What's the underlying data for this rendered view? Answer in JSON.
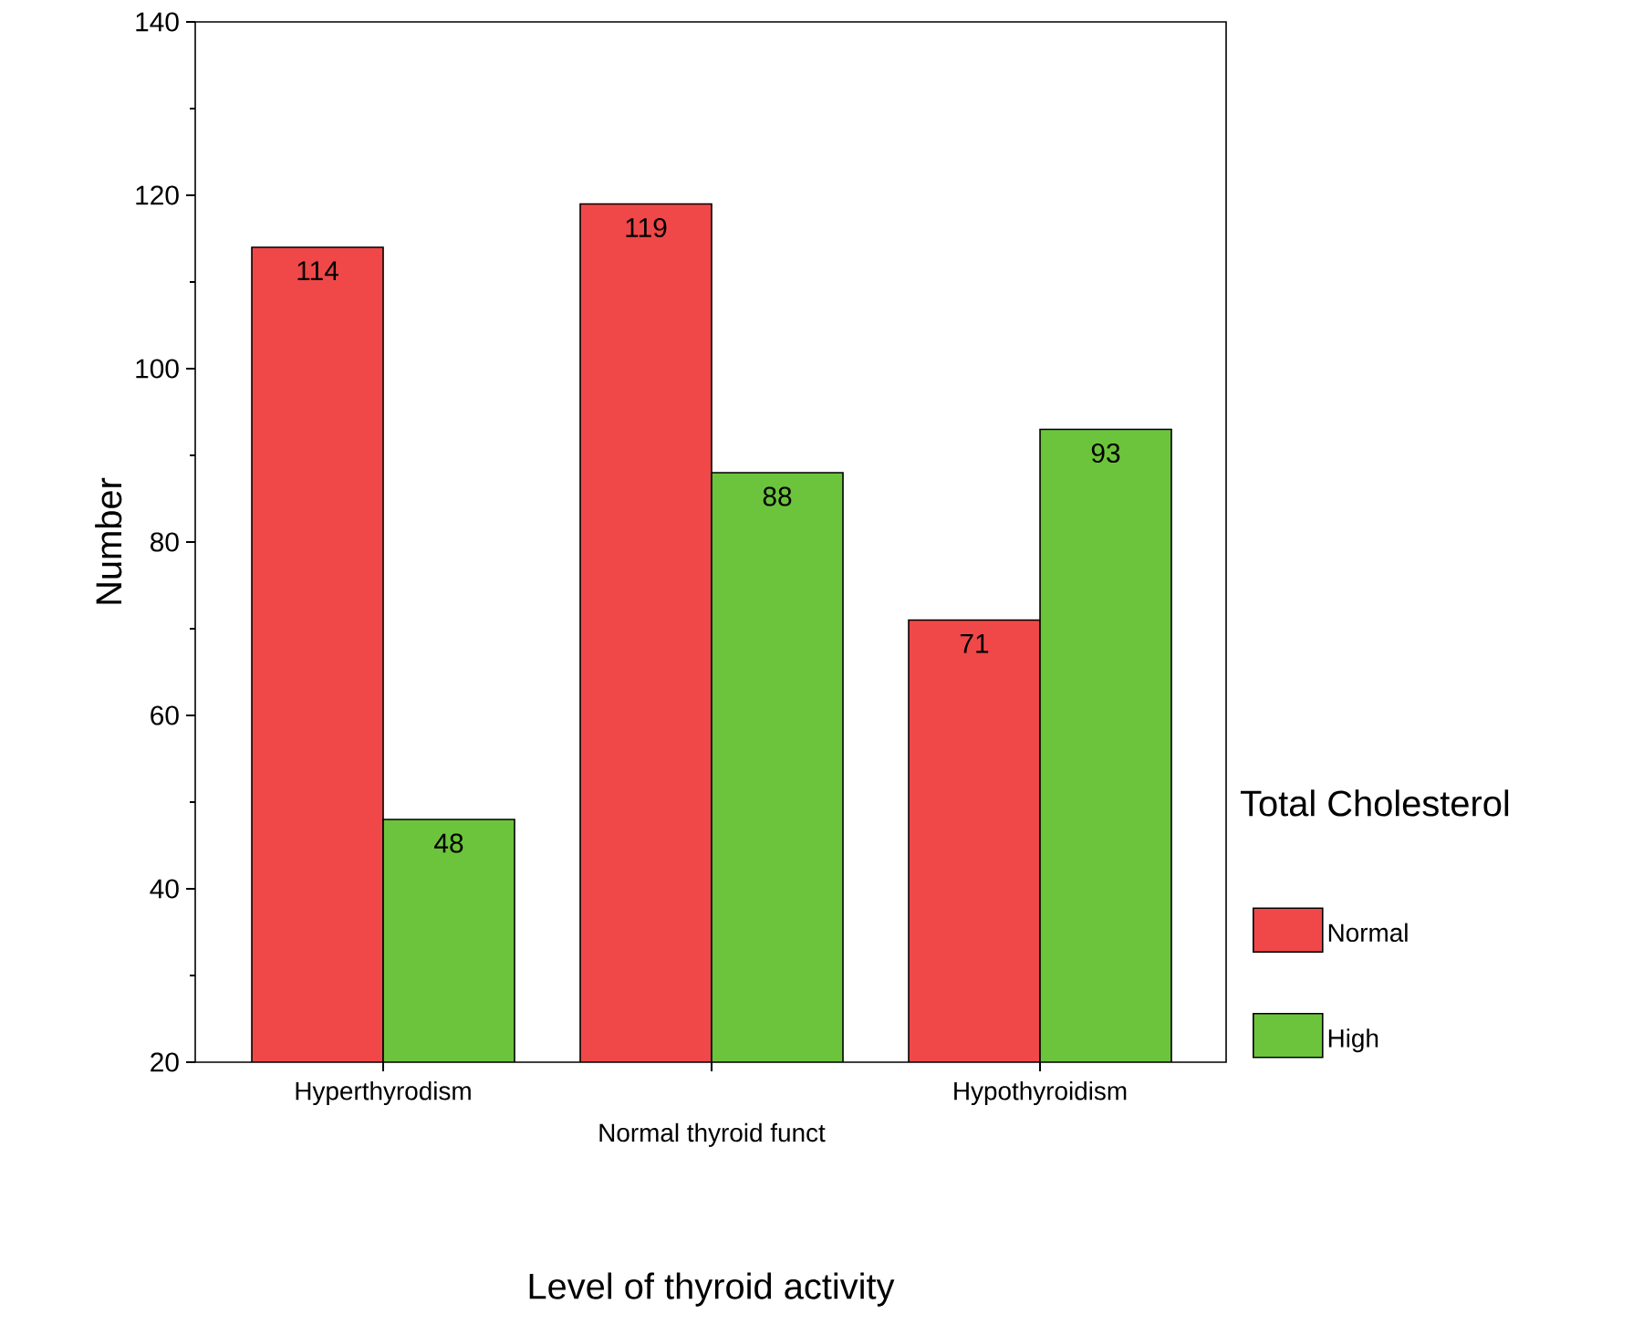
{
  "chart_data": {
    "type": "bar",
    "xlabel": "Level of thyroid activity",
    "ylabel": "Number",
    "legend_title": "Total Cholesterol",
    "categories": [
      "Hyperthyrodism",
      "Normal thyroid funct",
      "Hypothyroidism"
    ],
    "series": [
      {
        "name": "Normal",
        "color": "#f04848",
        "values": [
          114,
          119,
          71
        ]
      },
      {
        "name": "High",
        "color": "#6cc43c",
        "values": [
          48,
          88,
          93
        ]
      }
    ],
    "ylim": [
      20,
      140
    ],
    "yticks": [
      20,
      40,
      60,
      80,
      100,
      120,
      140
    ],
    "data_labels": true,
    "legend": "right"
  }
}
